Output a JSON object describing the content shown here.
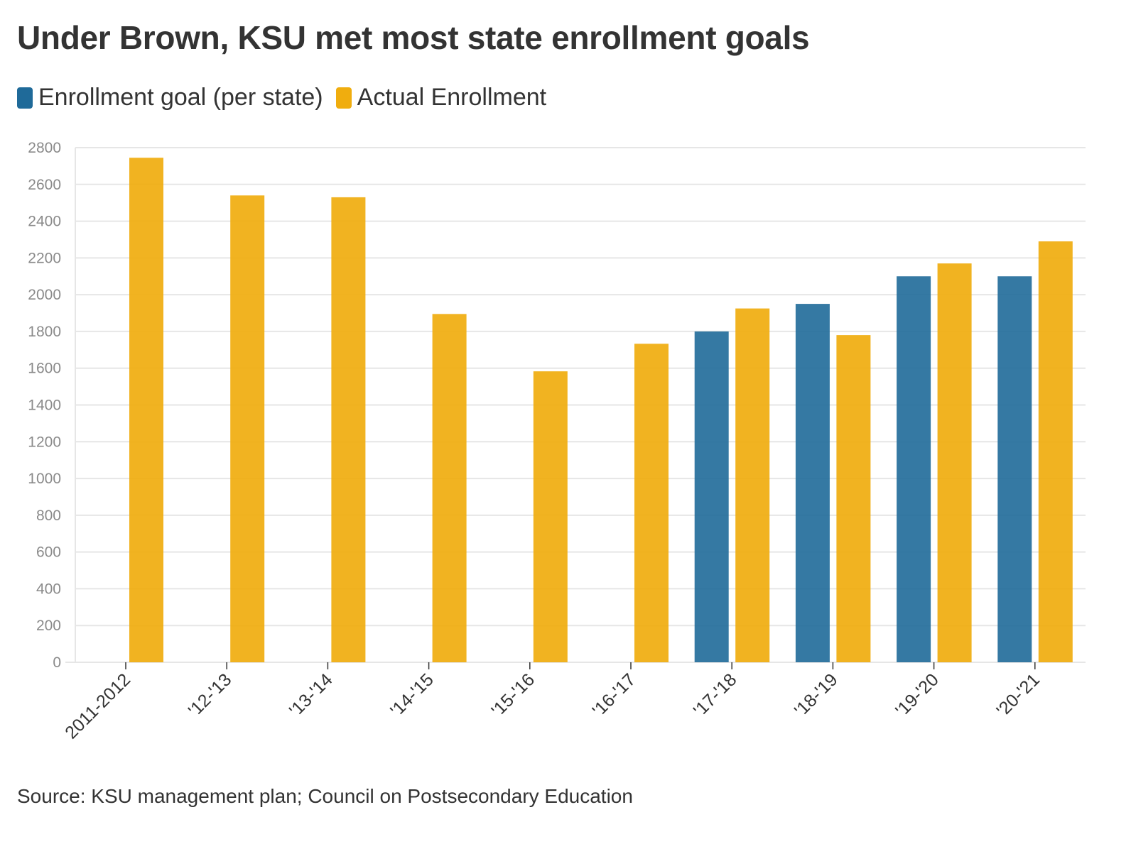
{
  "title": "Under Brown, KSU met most state enrollment goals",
  "source": "Source: KSU management plan; Council on Postsecondary Education",
  "colors": {
    "goal": "#1f6a99",
    "actual": "#f0ad0e",
    "grid": "#e6e6e6",
    "tick": "#8a8a8a",
    "axis": "#333333"
  },
  "chart_data": {
    "type": "bar",
    "title": "Under Brown, KSU met most state enrollment goals",
    "xlabel": "",
    "ylabel": "",
    "ylim": [
      0,
      2800
    ],
    "yticks": [
      0,
      200,
      400,
      600,
      800,
      1000,
      1200,
      1400,
      1600,
      1800,
      2000,
      2200,
      2400,
      2600,
      2800
    ],
    "grid": true,
    "legend_position": "top-left",
    "categories": [
      "2011-2012",
      "'12-'13",
      "'13-'14",
      "'14-'15",
      "'15-'16",
      "'16-'17",
      "'17-'18",
      "'18-'19",
      "'19-'20",
      "'20-'21"
    ],
    "series": [
      {
        "name": "Enrollment goal (per state)",
        "color": "#1f6a99",
        "values": [
          null,
          null,
          null,
          null,
          null,
          null,
          1800,
          1950,
          2100,
          2100
        ]
      },
      {
        "name": "Actual Enrollment",
        "color": "#f0ad0e",
        "values": [
          2745,
          2540,
          2530,
          1895,
          1583,
          1733,
          1925,
          1780,
          2170,
          2290
        ]
      }
    ]
  }
}
